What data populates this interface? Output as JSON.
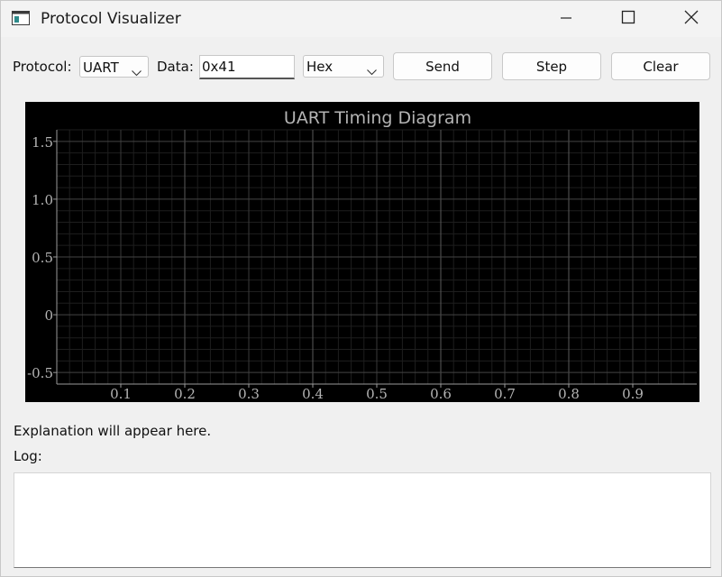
{
  "window": {
    "title": "Protocol Visualizer"
  },
  "toolbar": {
    "protocol_label": "Protocol:",
    "protocol_value": "UART",
    "data_label": "Data:",
    "data_value": "0x41",
    "format_value": "Hex",
    "send_label": "Send",
    "step_label": "Step",
    "clear_label": "Clear"
  },
  "colors": {
    "plot_background": "#000000",
    "grid_major": "#505050",
    "grid_minor": "#1e1e1e",
    "axis_text": "#b4b4b4",
    "title_text": "#b4b4b4"
  },
  "chart_data": {
    "type": "line",
    "title": "UART Timing Diagram",
    "xlabel": "",
    "ylabel": "",
    "xlim": [
      0,
      1.0
    ],
    "ylim": [
      -0.6,
      1.6
    ],
    "x_ticks": [
      0.1,
      0.2,
      0.3,
      0.4,
      0.5,
      0.6,
      0.7,
      0.8,
      0.9
    ],
    "x_tick_labels": [
      "0.1",
      "0.2",
      "0.3",
      "0.4",
      "0.5",
      "0.6",
      "0.7",
      "0.8",
      "0.9"
    ],
    "y_ticks": [
      1.5,
      1.0,
      0.5,
      0,
      -0.5
    ],
    "y_tick_labels": [
      "1.5",
      "1.0",
      "0.5",
      "0",
      "-0.5"
    ],
    "grid": true,
    "series": []
  },
  "explanation": "Explanation will appear here.",
  "log": {
    "label": "Log:",
    "content": ""
  }
}
